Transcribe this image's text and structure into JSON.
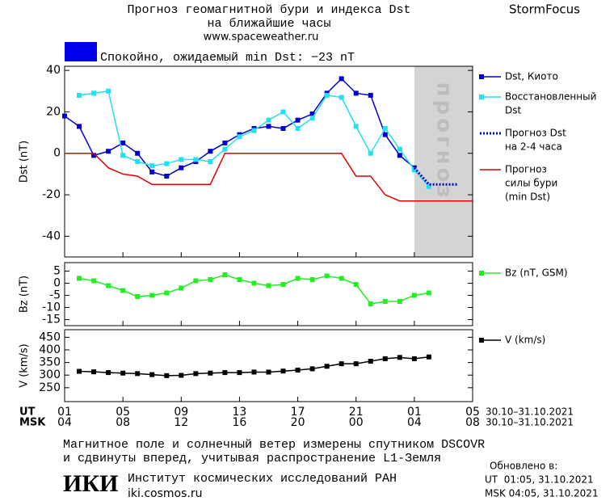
{
  "header": {
    "title_lines": [
      "Прогноз геомагнитной бури и индекса Dst",
      "на ближайшие часы",
      "www.spaceweather.ru"
    ],
    "brand": "StormFocus"
  },
  "status": {
    "text": "Спокойно, ожидаемый min Dst: −23 nT",
    "color": "#0000ee"
  },
  "chart_data": [
    {
      "type": "line",
      "ylabel": "Dst (nT)",
      "xlim": [
        0,
        28
      ],
      "ylim": [
        -50,
        42
      ],
      "yticks": [
        40,
        20,
        0,
        -20,
        -40
      ],
      "shade": {
        "range": [
          24,
          28
        ],
        "label": "прогноз",
        "color": "#d4d4d4"
      },
      "series": [
        {
          "name": [
            "Dst, Киото"
          ],
          "color": "#0000cc",
          "marker": "square",
          "x": [
            0,
            1,
            2,
            3,
            4,
            5,
            6,
            7,
            8,
            9,
            10,
            11,
            12,
            13,
            14,
            15,
            16,
            17,
            18,
            19,
            20,
            21,
            22,
            23,
            24
          ],
          "values": [
            18,
            13,
            -1,
            1,
            5,
            0,
            -9,
            -11,
            -7,
            -4,
            1,
            5,
            9,
            12,
            13,
            12,
            16,
            19,
            29,
            36,
            29,
            28,
            9,
            -1,
            -7
          ]
        },
        {
          "name": [
            "Восстановленный",
            "Dst"
          ],
          "color": "#22e0f0",
          "marker": "square",
          "x": [
            1,
            2,
            3,
            4,
            5,
            6,
            7,
            8,
            9,
            10,
            11,
            12,
            13,
            14,
            15,
            16,
            17,
            18,
            19,
            20,
            21,
            22,
            23,
            24,
            25
          ],
          "values": [
            28,
            29,
            30,
            -1,
            -4,
            -6,
            -5,
            -3,
            -3,
            -4,
            2,
            8,
            11,
            16,
            20,
            12,
            17,
            28,
            27,
            13,
            0,
            12,
            2,
            -8,
            -16
          ]
        },
        {
          "name": [
            "Прогноз Dst",
            "на 2-4 часа"
          ],
          "color": "#0000cc",
          "style": "dotted",
          "x": [
            24,
            25,
            26,
            27
          ],
          "values": [
            -7,
            -15,
            -15,
            -15
          ]
        },
        {
          "name": [
            "Прогноз",
            "силы бури",
            "(min Dst)"
          ],
          "color": "#dd0000",
          "x": [
            0,
            2,
            3,
            4,
            5,
            6,
            10,
            11,
            19,
            20,
            21,
            22,
            23,
            28
          ],
          "values": [
            0,
            0,
            -7,
            -10,
            -11,
            -15,
            -15,
            0,
            0,
            -11,
            -11,
            -20,
            -23,
            -23
          ]
        }
      ]
    },
    {
      "type": "line",
      "ylabel": "Bz (nT)",
      "xlim": [
        0,
        28
      ],
      "ylim": [
        -17.5,
        8.5
      ],
      "yticks": [
        5,
        0,
        -5,
        -10,
        -15
      ],
      "series": [
        {
          "name": [
            "Bz (nT, GSM)"
          ],
          "color": "#22ee22",
          "marker": "square",
          "x": [
            1,
            2,
            3,
            4,
            5,
            6,
            7,
            8,
            9,
            10,
            11,
            12,
            13,
            14,
            15,
            16,
            17,
            18,
            19,
            20,
            21,
            22,
            23,
            24,
            25
          ],
          "values": [
            2,
            1,
            -1,
            -3,
            -5.5,
            -5,
            -4,
            -2,
            1,
            1.5,
            3.5,
            1.5,
            0,
            -1,
            -0.5,
            2,
            1.5,
            3,
            2,
            -0.5,
            -8.5,
            -7.5,
            -7.5,
            -5,
            -4
          ]
        }
      ]
    },
    {
      "type": "line",
      "ylabel": "V (km/s)",
      "xlim": [
        0,
        28
      ],
      "ylim": [
        195,
        480
      ],
      "yticks": [
        450,
        400,
        350,
        300,
        250
      ],
      "series": [
        {
          "name": [
            "V (km/s)"
          ],
          "color": "#000000",
          "marker": "square",
          "x": [
            1,
            2,
            3,
            4,
            5,
            6,
            7,
            8,
            9,
            10,
            11,
            12,
            13,
            14,
            15,
            16,
            17,
            18,
            19,
            20,
            21,
            22,
            23,
            24,
            25
          ],
          "values": [
            315,
            313,
            310,
            308,
            306,
            302,
            298,
            299,
            306,
            308,
            310,
            310,
            312,
            312,
            316,
            320,
            325,
            335,
            345,
            345,
            355,
            365,
            370,
            365,
            372
          ]
        }
      ],
      "xticks": [
        {
          "value": 0,
          "label": "01"
        },
        {
          "value": 4,
          "label": "05"
        },
        {
          "value": 8,
          "label": "09"
        },
        {
          "value": 12,
          "label": "13"
        },
        {
          "value": 16,
          "label": "17"
        },
        {
          "value": 20,
          "label": "21"
        },
        {
          "value": 24,
          "label": "01"
        },
        {
          "value": 28,
          "label": "05"
        }
      ],
      "xticks_msk": [
        {
          "value": 0,
          "label": "04"
        },
        {
          "value": 4,
          "label": "08"
        },
        {
          "value": 8,
          "label": "12"
        },
        {
          "value": 12,
          "label": "16"
        },
        {
          "value": 16,
          "label": "20"
        },
        {
          "value": 20,
          "label": "00"
        },
        {
          "value": 24,
          "label": "04"
        },
        {
          "value": 28,
          "label": "08"
        }
      ],
      "x_rows": [
        {
          "name": "UT",
          "range": "30.10–31.10.2021"
        },
        {
          "name": "MSK",
          "range": "30.10–31.10.2021"
        }
      ]
    }
  ],
  "footer": {
    "note_lines": [
      "Магнитное поле и солнечный ветер измерены спутником DSCOVR",
      "и сдвинуты вперед, учитывая распространение L1-Земля"
    ],
    "logo": "ИКИ",
    "institute": "Институт космических исследований РАН",
    "site": "iki.cosmos.ru",
    "updated_label": "Обновлено в:",
    "updated_lines": [
      "UT  01:05, 31.10.2021",
      "MSK 04:05, 31.10.2021"
    ]
  }
}
